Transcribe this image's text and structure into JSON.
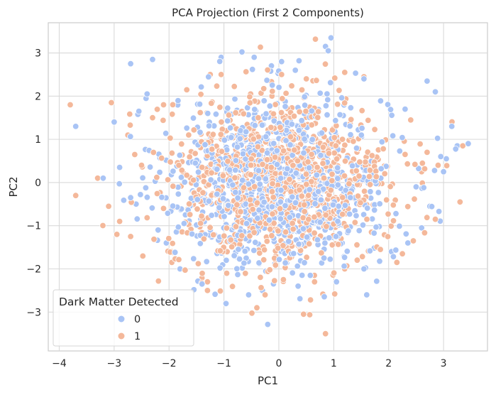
{
  "chart_data": {
    "type": "scatter",
    "title": "PCA Projection (First 2 Components)",
    "xlabel": "PC1",
    "ylabel": "PC2",
    "xlim": [
      -4.2,
      3.8
    ],
    "ylim": [
      -3.9,
      3.7
    ],
    "xticks": [
      -4,
      -3,
      -2,
      -1,
      0,
      1,
      2,
      3
    ],
    "yticks": [
      -3,
      -2,
      -1,
      0,
      1,
      2,
      3
    ],
    "grid": true,
    "legend": {
      "title": "Dark Matter Detected",
      "placement": "lower-left",
      "entries": [
        "0",
        "1"
      ]
    },
    "series": [
      {
        "name": "0",
        "color": "#a9c4f5",
        "sample_size": 1000,
        "points": [
          [
            -3.7,
            1.3
          ],
          [
            -2.7,
            2.75
          ],
          [
            -2.3,
            2.85
          ],
          [
            -2.4,
            2.05
          ],
          [
            -1.05,
            2.9
          ],
          [
            -0.45,
            2.9
          ],
          [
            0.05,
            2.8
          ],
          [
            0.85,
            3.15
          ],
          [
            0.95,
            3.35
          ],
          [
            0.9,
            3.05
          ],
          [
            1.55,
            2.4
          ],
          [
            2.7,
            2.35
          ],
          [
            2.85,
            2.1
          ],
          [
            3.15,
            1.3
          ],
          [
            3.25,
            0.85
          ],
          [
            3.45,
            0.9
          ],
          [
            2.95,
            0.6
          ],
          [
            3.05,
            0.55
          ],
          [
            3.0,
            0.25
          ],
          [
            2.75,
            -0.55
          ],
          [
            2.6,
            -1.05
          ],
          [
            2.35,
            -1.4
          ],
          [
            1.55,
            -2.0
          ],
          [
            1.6,
            -2.6
          ],
          [
            -1.8,
            -2.0
          ],
          [
            -2.05,
            -1.4
          ],
          [
            -2.2,
            -1.1
          ],
          [
            -2.6,
            -0.5
          ],
          [
            -2.9,
            0.35
          ],
          [
            -3.2,
            0.1
          ],
          [
            -3.0,
            1.4
          ],
          [
            -2.55,
            1.65
          ],
          [
            -2.7,
            -0.35
          ],
          [
            -1.4,
            -2.35
          ],
          [
            -0.3,
            -2.5
          ],
          [
            0.35,
            -2.4
          ],
          [
            2.05,
            -1.6
          ],
          [
            2.3,
            1.7
          ],
          [
            2.5,
            -0.1
          ],
          [
            -0.55,
            -2.6
          ],
          [
            1.05,
            -2.3
          ],
          [
            0.3,
            2.6
          ]
        ]
      },
      {
        "name": "1",
        "color": "#f4b89a",
        "sample_size": 1000,
        "points": [
          [
            -3.8,
            1.8
          ],
          [
            -3.7,
            -0.3
          ],
          [
            -3.3,
            0.1
          ],
          [
            -3.05,
            1.85
          ],
          [
            -2.9,
            -0.9
          ],
          [
            -2.95,
            -1.2
          ],
          [
            -3.1,
            -0.55
          ],
          [
            -2.7,
            -1.25
          ],
          [
            -2.3,
            1.5
          ],
          [
            -2.1,
            -0.6
          ],
          [
            -1.95,
            -1.6
          ],
          [
            -1.95,
            -1.85
          ],
          [
            -1.6,
            -1.1
          ],
          [
            -1.3,
            -2.3
          ],
          [
            -1.3,
            -2.5
          ],
          [
            -0.95,
            -2.1
          ],
          [
            -0.4,
            -2.9
          ],
          [
            -0.25,
            -2.6
          ],
          [
            0.45,
            -3.05
          ],
          [
            0.85,
            -3.5
          ],
          [
            0.65,
            -2.3
          ],
          [
            1.2,
            -2.0
          ],
          [
            2.15,
            -1.85
          ],
          [
            2.25,
            -1.65
          ],
          [
            2.45,
            -1.35
          ],
          [
            2.85,
            -0.85
          ],
          [
            3.3,
            -0.45
          ],
          [
            3.35,
            0.85
          ],
          [
            2.9,
            0.4
          ],
          [
            2.7,
            0.7
          ],
          [
            2.3,
            0.65
          ],
          [
            1.55,
            2.45
          ],
          [
            1.2,
            2.55
          ],
          [
            0.5,
            2.4
          ],
          [
            0.05,
            2.5
          ],
          [
            -1.25,
            2.5
          ],
          [
            -1.05,
            2.5
          ],
          [
            -2.1,
            1.8
          ],
          [
            -2.5,
            0.4
          ],
          [
            -2.75,
            1.1
          ],
          [
            1.85,
            -1.55
          ],
          [
            2.6,
            0.25
          ]
        ]
      }
    ]
  }
}
